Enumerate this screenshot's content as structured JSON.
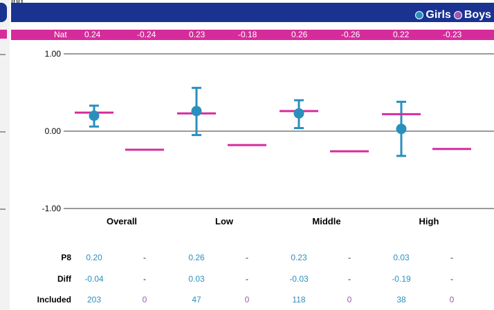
{
  "colors": {
    "header": "#1a3391",
    "accent_pink": "#d62c9b",
    "girls": "#2a8fbd",
    "boys": "#9b59b6",
    "nat_line": "#d62c9b",
    "axis": "#9a9a9a"
  },
  "header": {
    "top_fragment": "ing",
    "legend": [
      {
        "label": "Girls",
        "color": "#2a8fbd"
      },
      {
        "label": "Boys",
        "color": "#9b59b6"
      }
    ]
  },
  "nat_row": {
    "label": "Nat",
    "values": [
      "0.24",
      "-0.24",
      "0.23",
      "-0.18",
      "0.26",
      "-0.26",
      "0.22",
      "-0.23"
    ]
  },
  "chart_data": {
    "type": "scatter",
    "categories": [
      "Overall",
      "Low",
      "Middle",
      "High"
    ],
    "ylim": [
      -1,
      1
    ],
    "y_ticks": [
      "1.00",
      "0.00",
      "-1.00"
    ],
    "girls": [
      {
        "value": 0.2,
        "lower": 0.06,
        "upper": 0.33
      },
      {
        "value": 0.26,
        "lower": -0.05,
        "upper": 0.56
      },
      {
        "value": 0.23,
        "lower": 0.04,
        "upper": 0.4
      },
      {
        "value": 0.03,
        "lower": -0.32,
        "upper": 0.38
      }
    ],
    "national": {
      "girls": [
        0.24,
        0.23,
        0.26,
        0.22
      ],
      "boys": [
        -0.24,
        -0.18,
        -0.26,
        -0.23
      ]
    }
  },
  "table": {
    "rows": [
      {
        "label": "P8",
        "values": [
          "0.20",
          "-",
          "0.26",
          "-",
          "0.23",
          "-",
          "0.03",
          "-"
        ]
      },
      {
        "label": "Diff",
        "values": [
          "-0.04",
          "-",
          "0.03",
          "-",
          "-0.03",
          "-",
          "-0.19",
          "-"
        ]
      },
      {
        "label": "Included",
        "values": [
          "203",
          "0",
          "47",
          "0",
          "118",
          "0",
          "38",
          "0"
        ]
      }
    ]
  }
}
